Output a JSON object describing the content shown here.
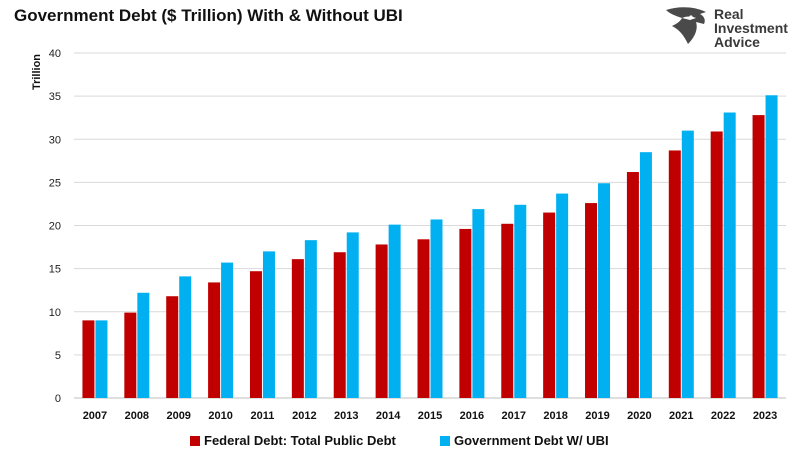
{
  "chart_data": {
    "type": "bar",
    "title": "Government Debt ($ Trillion) With & Without UBI",
    "ylabel": "Trillion",
    "xlabel": "",
    "ylim": [
      0,
      40
    ],
    "yticks": [
      0,
      5,
      10,
      15,
      20,
      25,
      30,
      35,
      40
    ],
    "grid": true,
    "legend_position": "bottom",
    "categories": [
      "2007",
      "2008",
      "2009",
      "2010",
      "2011",
      "2012",
      "2013",
      "2014",
      "2015",
      "2016",
      "2017",
      "2018",
      "2019",
      "2020",
      "2021",
      "2022",
      "2023"
    ],
    "series": [
      {
        "name": "Federal Debt: Total Public Debt",
        "color": "#c00000",
        "values": [
          9.0,
          9.9,
          11.8,
          13.4,
          14.7,
          16.1,
          16.9,
          17.8,
          18.4,
          19.6,
          20.2,
          21.5,
          22.6,
          26.2,
          28.7,
          30.9,
          32.8
        ]
      },
      {
        "name": "Government Debt W/ UBI",
        "color": "#00b0f0",
        "values": [
          9.0,
          12.2,
          14.1,
          15.7,
          17.0,
          18.3,
          19.2,
          20.1,
          20.7,
          21.9,
          22.4,
          23.7,
          24.9,
          28.5,
          31.0,
          33.1,
          35.1
        ]
      }
    ]
  },
  "logo": {
    "line1": "Real",
    "line2": "Investment",
    "line3": "Advice",
    "icon": "eagle-head-icon"
  }
}
